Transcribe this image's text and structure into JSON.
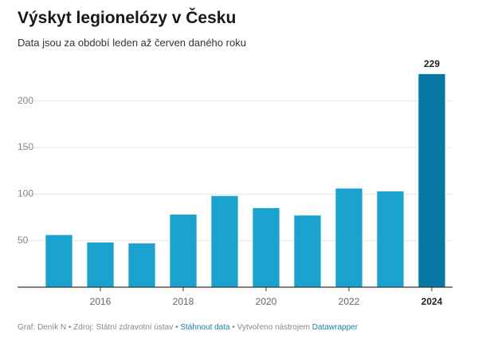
{
  "header": {
    "title": "Výskyt legionelózy v Česku",
    "subtitle": "Data jsou za období leden až červen daného roku"
  },
  "chart_data": {
    "type": "bar",
    "categories": [
      "2015",
      "2016",
      "2017",
      "2018",
      "2019",
      "2020",
      "2021",
      "2022",
      "2023",
      "2024"
    ],
    "values": [
      56,
      48,
      47,
      78,
      98,
      85,
      77,
      106,
      103,
      229
    ],
    "xticks": [
      "2016",
      "2018",
      "2020",
      "2022",
      "2024"
    ],
    "yticks": [
      50,
      100,
      150,
      200
    ],
    "ylim": [
      0,
      240
    ],
    "data_labels": [
      {
        "category": "2024",
        "text": "229"
      }
    ],
    "highlight_category": "2024",
    "grid": true,
    "colors": {
      "bar": "#1ba3cf",
      "highlight": "#0778a4",
      "grid": "#e6e6e6",
      "axis": "#333333",
      "tick_text": "#888888"
    }
  },
  "footer": {
    "prefix": "Graf: Deník N • Zdroj: Státní zdravotní ústav • ",
    "download_label": "Stáhnout data",
    "middle": " • Vytvořeno nástrojem ",
    "tool_label": "Datawrapper"
  }
}
